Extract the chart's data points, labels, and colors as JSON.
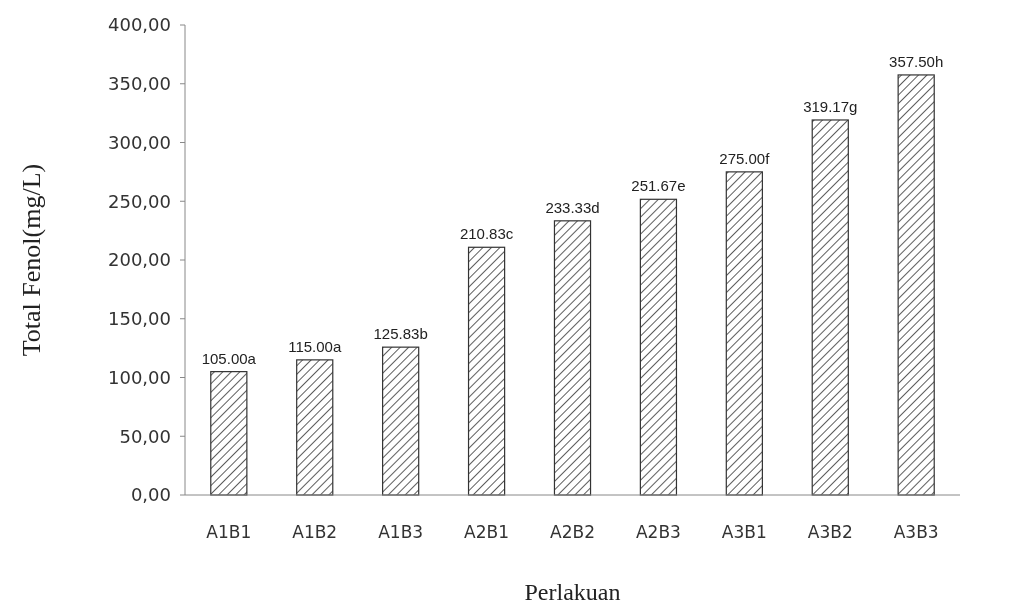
{
  "chart_data": {
    "type": "bar",
    "xlabel": "Perlakuan",
    "ylabel": "Total Fenol(mg/L)",
    "categories": [
      "A1B1",
      "A1B2",
      "A1B3",
      "A2B1",
      "A2B2",
      "A2B3",
      "A3B1",
      "A3B2",
      "A3B3"
    ],
    "values": [
      105.0,
      115.0,
      125.83,
      210.83,
      233.33,
      251.67,
      275.0,
      319.17,
      357.5
    ],
    "value_labels": [
      "105.00a",
      "115.00a",
      "125.83b",
      "210.83c",
      "233.33d",
      "251.67e",
      "275.00f",
      "319.17g",
      "357.50h"
    ],
    "color": "#333333",
    "ylim": [
      0,
      400
    ],
    "yticks": [
      {
        "value": 0,
        "label": "0,00"
      },
      {
        "value": 50,
        "label": "50,00"
      },
      {
        "value": 100,
        "label": "100,00"
      },
      {
        "value": 150,
        "label": "150,00"
      },
      {
        "value": 200,
        "label": "200,00"
      },
      {
        "value": 250,
        "label": "250,00"
      },
      {
        "value": 300,
        "label": "300,00"
      },
      {
        "value": 350,
        "label": "350,00"
      },
      {
        "value": 400,
        "label": "400,00"
      }
    ],
    "grid": false
  }
}
